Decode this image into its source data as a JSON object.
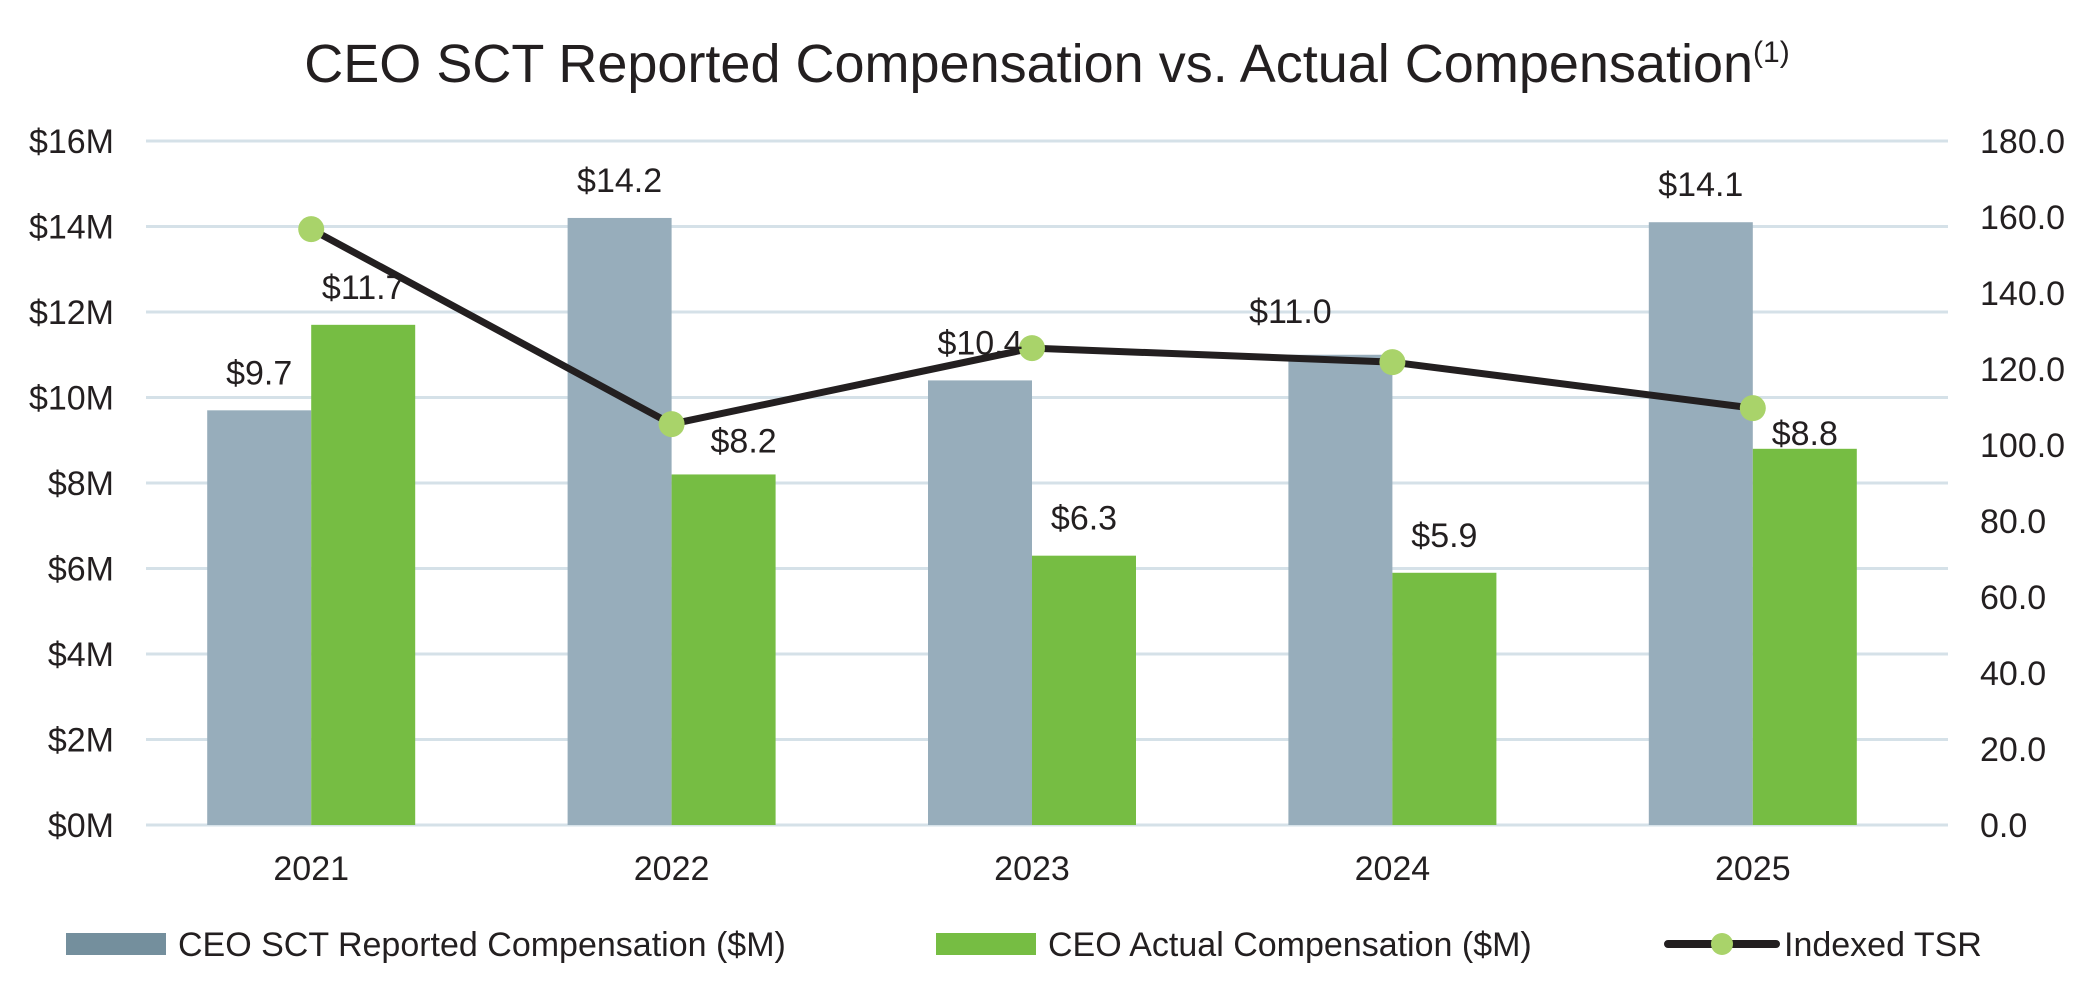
{
  "chart_data": {
    "type": "bar",
    "title": "CEO SCT Reported Compensation vs. Actual Compensation",
    "title_footnote": "(1)",
    "categories": [
      "2021",
      "2022",
      "2023",
      "2024",
      "2025"
    ],
    "series": [
      {
        "name": "CEO SCT Reported Compensation ($M)",
        "kind": "bar",
        "axis": "left",
        "color": "#97adbb",
        "legend_color": "#748f9d",
        "values": [
          9.7,
          14.2,
          10.4,
          11.0,
          14.1
        ],
        "labels": [
          "$9.7",
          "$14.2",
          "$10.4",
          "$11.0",
          "$14.1"
        ]
      },
      {
        "name": "CEO Actual Compensation ($M)",
        "kind": "bar",
        "axis": "left",
        "color": "#76bd43",
        "legend_color": "#76bd43",
        "values": [
          11.7,
          8.2,
          6.3,
          5.9,
          8.8
        ],
        "labels": [
          "$11.7",
          "$8.2",
          "$6.3",
          "$5.9",
          "$8.8"
        ]
      },
      {
        "name": "Indexed TSR",
        "kind": "line",
        "axis": "right",
        "line_color": "#231f20",
        "marker_color": "#a9d36a",
        "values": [
          156.8,
          105.5,
          125.5,
          121.8,
          109.7
        ]
      }
    ],
    "y_left": {
      "ylim": [
        0,
        16
      ],
      "ticks": [
        0,
        2,
        4,
        6,
        8,
        10,
        12,
        14,
        16
      ],
      "tick_labels": [
        "$0M",
        "$2M",
        "$4M",
        "$6M",
        "$8M",
        "$10M",
        "$12M",
        "$14M",
        "$16M"
      ]
    },
    "y_right": {
      "ylim": [
        0,
        180
      ],
      "ticks": [
        0,
        20,
        40,
        60,
        80,
        100,
        120,
        140,
        160,
        180
      ],
      "tick_labels": [
        "0.0",
        "20.0",
        "40.0",
        "60.0",
        "80.0",
        "100.0",
        "120.0",
        "140.0",
        "160.0",
        "180.0"
      ]
    },
    "grid": true,
    "grid_color": "#d5e1e8",
    "legend_position": "bottom"
  }
}
